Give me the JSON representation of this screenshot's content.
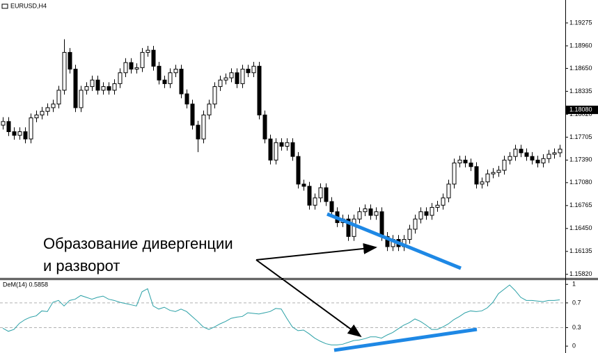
{
  "chart_data": [
    {
      "type": "candlestick",
      "title": "EURUSD,H4",
      "open": [
        1.1787,
        1.1792,
        1.1778,
        1.1773,
        1.1778,
        1.1768,
        1.1797,
        1.1801,
        1.1806,
        1.1811,
        1.1816,
        1.1835,
        1.1887,
        1.1864,
        1.1811,
        1.1835,
        1.184,
        1.1849,
        1.1835,
        1.184,
        1.1835,
        1.1844,
        1.1859,
        1.1873,
        1.1864,
        1.1866,
        1.1887,
        1.189,
        1.1868,
        1.1849,
        1.1844,
        1.1859,
        1.1864,
        1.183,
        1.1816,
        1.1787,
        1.1768,
        1.1801,
        1.1816,
        1.184,
        1.1849,
        1.1852,
        1.1859,
        1.1844,
        1.1864,
        1.1859,
        1.1868,
        1.1801,
        1.1768,
        1.1739,
        1.1763,
        1.1758,
        1.1763,
        1.1744,
        1.1706,
        1.1703,
        1.1677,
        1.1687,
        1.1701,
        1.1682,
        1.1668,
        1.1653,
        1.1658,
        1.1634,
        1.1658,
        1.1668,
        1.1672,
        1.1663,
        1.1668,
        1.1634,
        1.162,
        1.163,
        1.162,
        1.163,
        1.1644,
        1.1658,
        1.1668,
        1.1663,
        1.1674,
        1.1677,
        1.1687,
        1.1706,
        1.1735,
        1.1739,
        1.1735,
        1.173,
        1.1706,
        1.1709,
        1.172,
        1.1722,
        1.1725,
        1.1739,
        1.1744,
        1.1754,
        1.1749,
        1.1744,
        1.1739,
        1.1735,
        1.1741,
        1.1747,
        1.1749
      ],
      "high": [
        1.1798,
        1.1798,
        1.1784,
        1.1784,
        1.1784,
        1.1803,
        1.1807,
        1.1812,
        1.1817,
        1.1822,
        1.1841,
        1.1905,
        1.1893,
        1.187,
        1.1841,
        1.1846,
        1.1855,
        1.1855,
        1.1846,
        1.1846,
        1.185,
        1.1865,
        1.1879,
        1.1879,
        1.1872,
        1.1893,
        1.1896,
        1.1896,
        1.1874,
        1.1855,
        1.1865,
        1.187,
        1.187,
        1.1836,
        1.1822,
        1.1793,
        1.1807,
        1.1822,
        1.1846,
        1.1855,
        1.1858,
        1.1865,
        1.1865,
        1.187,
        1.187,
        1.1874,
        1.1874,
        1.1807,
        1.1774,
        1.1769,
        1.1769,
        1.1769,
        1.1769,
        1.175,
        1.1712,
        1.1709,
        1.1693,
        1.1707,
        1.1707,
        1.1688,
        1.1674,
        1.1664,
        1.1664,
        1.1664,
        1.1674,
        1.1678,
        1.1678,
        1.1674,
        1.1674,
        1.164,
        1.1636,
        1.1636,
        1.1636,
        1.165,
        1.1664,
        1.1674,
        1.1674,
        1.168,
        1.1683,
        1.1693,
        1.1712,
        1.1741,
        1.1745,
        1.1745,
        1.1741,
        1.1736,
        1.1715,
        1.1726,
        1.1728,
        1.1731,
        1.1745,
        1.175,
        1.176,
        1.176,
        1.1755,
        1.175,
        1.1745,
        1.1747,
        1.1753,
        1.1755,
        1.176
      ],
      "low": [
        1.1781,
        1.1772,
        1.1767,
        1.1767,
        1.1762,
        1.1762,
        1.1791,
        1.1795,
        1.18,
        1.1805,
        1.181,
        1.1829,
        1.1858,
        1.1805,
        1.1805,
        1.1829,
        1.1834,
        1.1829,
        1.1829,
        1.1829,
        1.1829,
        1.1838,
        1.1853,
        1.1858,
        1.1858,
        1.186,
        1.1881,
        1.1862,
        1.1843,
        1.1838,
        1.1838,
        1.1853,
        1.1824,
        1.181,
        1.1781,
        1.175,
        1.1762,
        1.1795,
        1.181,
        1.1834,
        1.1843,
        1.1846,
        1.1838,
        1.1838,
        1.1853,
        1.1853,
        1.1795,
        1.1762,
        1.1733,
        1.1733,
        1.1752,
        1.1752,
        1.1738,
        1.17,
        1.1697,
        1.1671,
        1.1671,
        1.1681,
        1.1676,
        1.1662,
        1.1647,
        1.1647,
        1.1628,
        1.1628,
        1.1652,
        1.1662,
        1.1657,
        1.1657,
        1.1628,
        1.1614,
        1.1614,
        1.1614,
        1.1614,
        1.1624,
        1.1638,
        1.1652,
        1.1657,
        1.1657,
        1.1668,
        1.1671,
        1.1681,
        1.17,
        1.1729,
        1.1729,
        1.1724,
        1.17,
        1.17,
        1.1703,
        1.1714,
        1.1716,
        1.1719,
        1.1733,
        1.1738,
        1.1743,
        1.1738,
        1.1733,
        1.1729,
        1.1729,
        1.1735,
        1.1741,
        1.1743
      ],
      "close": [
        1.1792,
        1.1778,
        1.1773,
        1.1778,
        1.1768,
        1.1797,
        1.1801,
        1.1806,
        1.1811,
        1.1816,
        1.1835,
        1.1887,
        1.1864,
        1.1811,
        1.1835,
        1.184,
        1.1849,
        1.1835,
        1.184,
        1.1835,
        1.1844,
        1.1859,
        1.1873,
        1.1864,
        1.1866,
        1.1887,
        1.189,
        1.1868,
        1.1849,
        1.1844,
        1.1859,
        1.1864,
        1.183,
        1.1816,
        1.1787,
        1.1768,
        1.1801,
        1.1816,
        1.184,
        1.1849,
        1.1852,
        1.1859,
        1.1844,
        1.1864,
        1.1859,
        1.1868,
        1.1801,
        1.1768,
        1.1739,
        1.1763,
        1.1758,
        1.1763,
        1.1744,
        1.1706,
        1.1703,
        1.1677,
        1.1687,
        1.1701,
        1.1682,
        1.1668,
        1.1653,
        1.1658,
        1.1634,
        1.1658,
        1.1668,
        1.1672,
        1.1663,
        1.1668,
        1.1634,
        1.162,
        1.163,
        1.162,
        1.163,
        1.1644,
        1.1658,
        1.1668,
        1.1663,
        1.1674,
        1.1677,
        1.1687,
        1.1706,
        1.1735,
        1.1739,
        1.1735,
        1.173,
        1.1706,
        1.1709,
        1.172,
        1.1722,
        1.1725,
        1.1739,
        1.1744,
        1.1754,
        1.1749,
        1.1744,
        1.1739,
        1.1735,
        1.1741,
        1.1747,
        1.1749,
        1.1754
      ],
      "up_color": "#ffffff",
      "down_color": "#000000",
      "ylim": [
        1.1577,
        1.1959
      ],
      "yticks": [
        {
          "value": 1.19275,
          "label": "1.19275"
        },
        {
          "value": 1.1896,
          "label": "1.18960"
        },
        {
          "value": 1.1865,
          "label": "1.18650"
        },
        {
          "value": 1.18335,
          "label": "1.18335"
        },
        {
          "value": 1.1802,
          "label": "1.18020"
        },
        {
          "value": 1.17705,
          "label": "1.17705"
        },
        {
          "value": 1.1739,
          "label": "1.17390"
        },
        {
          "value": 1.1708,
          "label": "1.17080"
        },
        {
          "value": 1.16765,
          "label": "1.16765"
        },
        {
          "value": 1.1645,
          "label": "1.16450"
        },
        {
          "value": 1.16135,
          "label": "1.16135"
        },
        {
          "value": 1.1582,
          "label": "1.15820"
        }
      ],
      "current_price": {
        "value": 1.1808,
        "label": "1.18080"
      },
      "annotations": [
        "Образование дивергенции",
        "и разворот"
      ]
    },
    {
      "type": "line",
      "title": "DeM(14) 0.5858",
      "color": "#2aa0a6",
      "values": [
        0.29,
        0.24,
        0.27,
        0.37,
        0.43,
        0.47,
        0.49,
        0.57,
        0.56,
        0.71,
        0.74,
        0.65,
        0.74,
        0.76,
        0.82,
        0.79,
        0.76,
        0.79,
        0.81,
        0.76,
        0.74,
        0.71,
        0.69,
        0.67,
        0.65,
        0.88,
        0.93,
        0.65,
        0.6,
        0.63,
        0.58,
        0.56,
        0.6,
        0.56,
        0.48,
        0.4,
        0.31,
        0.27,
        0.31,
        0.36,
        0.4,
        0.45,
        0.47,
        0.48,
        0.54,
        0.53,
        0.52,
        0.54,
        0.56,
        0.61,
        0.6,
        0.45,
        0.31,
        0.25,
        0.26,
        0.2,
        0.13,
        0.08,
        0.04,
        0.02,
        0.02,
        0.03,
        0.06,
        0.09,
        0.1,
        0.12,
        0.15,
        0.15,
        0.13,
        0.18,
        0.22,
        0.28,
        0.34,
        0.38,
        0.44,
        0.4,
        0.34,
        0.27,
        0.27,
        0.31,
        0.36,
        0.43,
        0.48,
        0.54,
        0.57,
        0.56,
        0.57,
        0.62,
        0.71,
        0.85,
        0.92,
        0.99,
        0.9,
        0.79,
        0.74,
        0.74,
        0.73,
        0.72,
        0.74,
        0.74,
        0.75
      ],
      "ylim": [
        -0.1,
        1.07
      ],
      "yticks": [
        0,
        0.3,
        0.7,
        1
      ],
      "levels": [
        0.3,
        0.7
      ]
    }
  ]
}
